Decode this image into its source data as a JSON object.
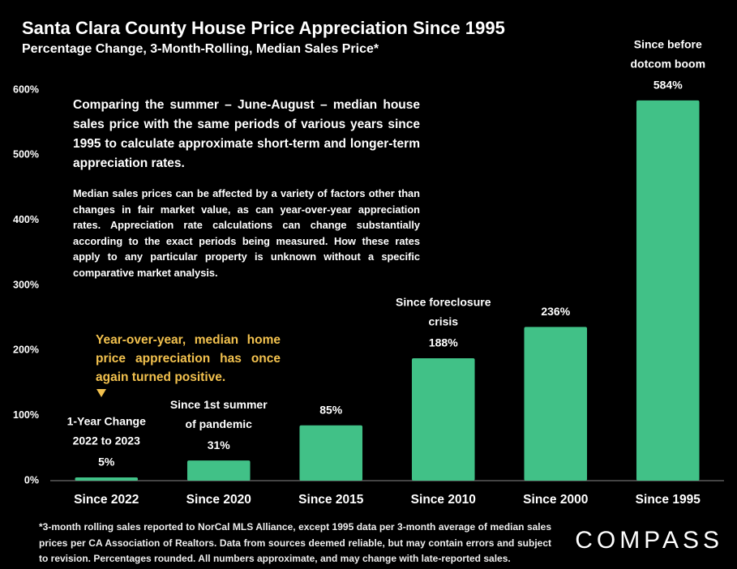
{
  "chart_data": {
    "type": "bar",
    "title": "Santa Clara County House Price Appreciation Since 1995",
    "subtitle": "Percentage Change, 3-Month-Rolling, Median Sales Price*",
    "categories": [
      "Since 2022",
      "Since 2020",
      "Since 2015",
      "Since 2010",
      "Since 2000",
      "Since 1995"
    ],
    "values": [
      5,
      31,
      85,
      188,
      236,
      584
    ],
    "value_labels": [
      "5%",
      "31%",
      "85%",
      "188%",
      "236%",
      "584%"
    ],
    "bar_annotations": [
      [
        "1-Year Change",
        "2022 to 2023"
      ],
      [
        "Since 1st summer",
        "of pandemic"
      ],
      null,
      [
        "Since foreclosure",
        "crisis"
      ],
      null,
      [
        "Since before",
        "dotcom boom"
      ]
    ],
    "color": "#41c187",
    "ylim": [
      0,
      600
    ],
    "yticks": [
      {
        "value": 0,
        "label": "0%"
      },
      {
        "value": 100,
        "label": "100%"
      },
      {
        "value": 200,
        "label": "200%"
      },
      {
        "value": 300,
        "label": "300%"
      },
      {
        "value": 400,
        "label": "400%"
      },
      {
        "value": 500,
        "label": "500%"
      },
      {
        "value": 600,
        "label": "600%"
      }
    ],
    "description": "Comparing the summer – June-August – median house sales price with the same periods of various years since 1995 to calculate approximate short-term and longer-term appreciation rates.",
    "caveat": "Median sales prices can be affected by a variety of factors other than changes in fair market value, as can year-over-year appreciation rates. Appreciation rate calculations can change substantially according to the exact periods being measured. How these rates apply to any particular property is unknown without a specific comparative market analysis.",
    "highlight_note": "Year-over-year, median home price appreciation has once again turned positive.",
    "footnote": "*3-month rolling sales reported to NorCal MLS Alliance, except 1995 data per 3-month average of median sales prices per CA Association of Realtors. Data from sources deemed reliable, but may contain errors and subject to revision. Percentages rounded. All numbers approximate, and may change with late-reported sales.",
    "logo": "COMPASS"
  }
}
